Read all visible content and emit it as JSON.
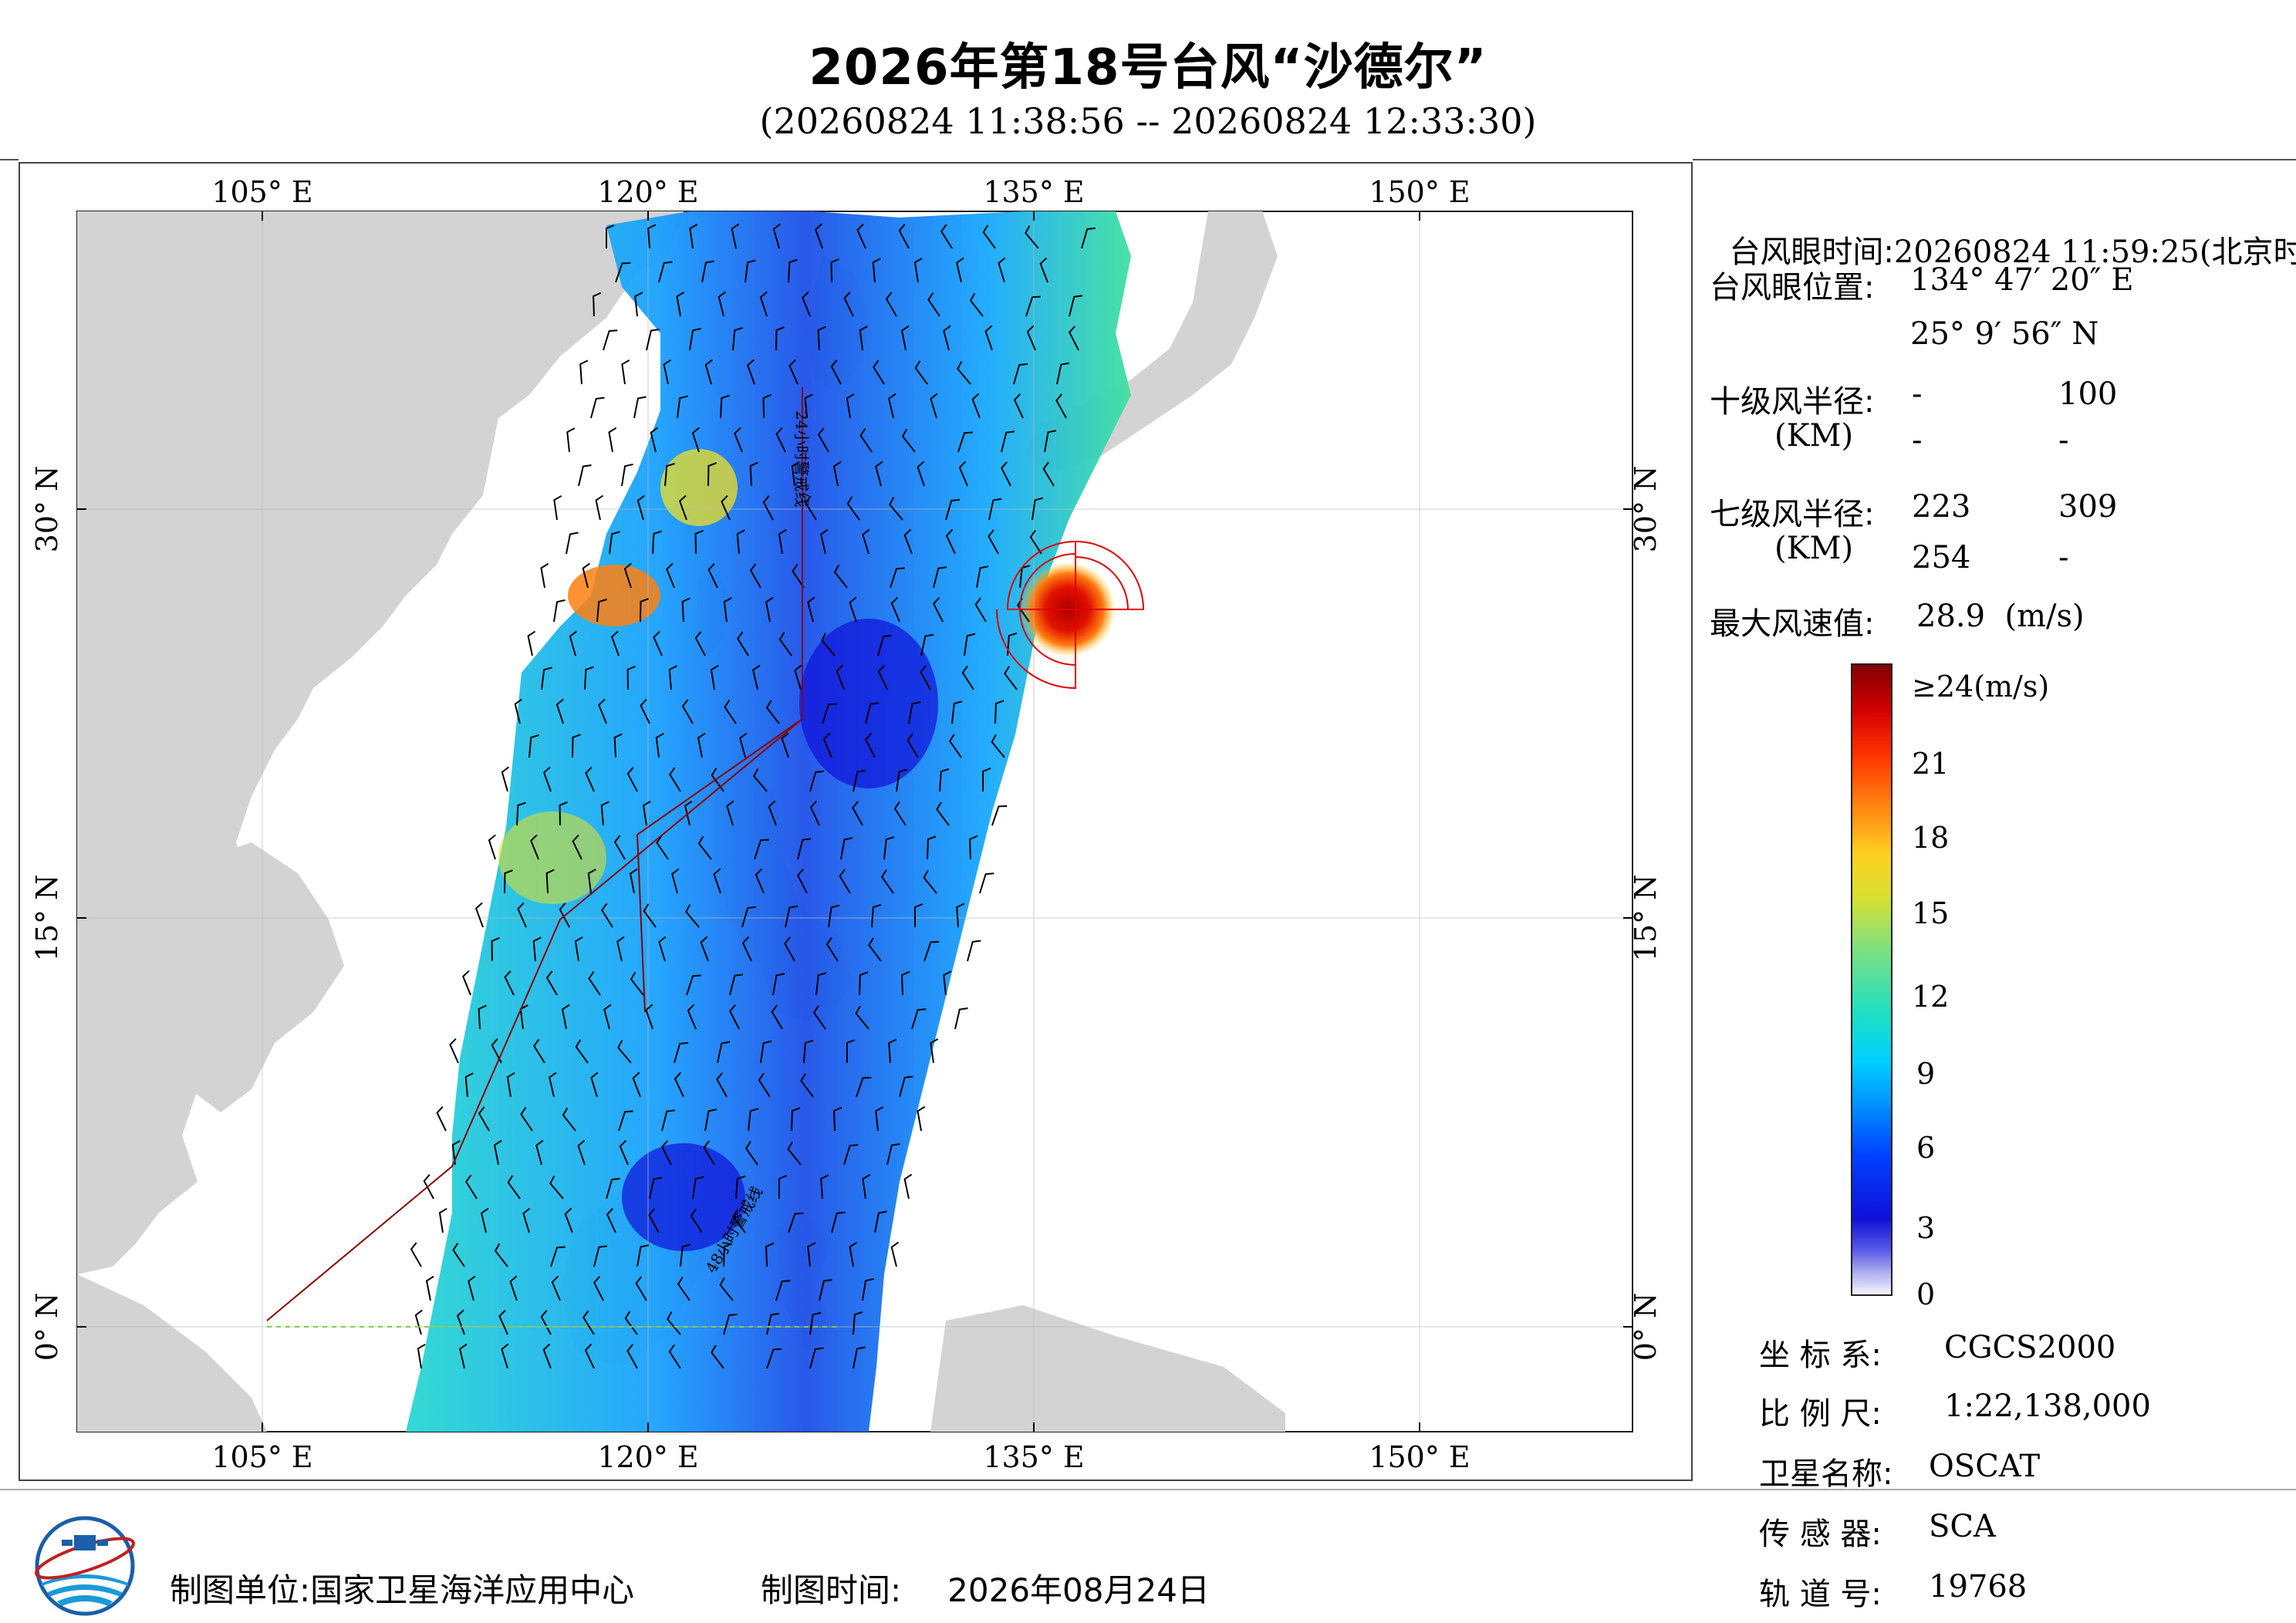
{
  "title": "2026年第18号台风“沙德尔”",
  "subtitle": "(20260824 11:38:56 -- 20260824 12:33:30)",
  "map": {
    "lon_ticks_top": [
      "105° E",
      "120° E",
      "135° E",
      "150° E"
    ],
    "lon_ticks_bottom": [
      "105° E",
      "120° E",
      "135° E",
      "150° E"
    ],
    "lat_ticks_left": [
      "30° N",
      "15° N",
      "0° N"
    ],
    "lat_ticks_right": [
      "30° N",
      "15° N",
      "0° N"
    ],
    "warning_line_labels": [
      "24小时警戒线",
      "48小时警戒线"
    ],
    "colors": {
      "land": "#d3d3d3",
      "sea": "#ffffff",
      "typhoon_marker": "#e00000",
      "warning_line": "#8b0000"
    }
  },
  "info": {
    "eye_time_label": "台风眼时间:",
    "eye_time_value": "20260824 11:59:25(北京时)",
    "eye_pos_label": "台风眼位置:",
    "eye_lon": "134° 47′ 20″ E",
    "eye_lat": "25° 9′ 56″ N",
    "r10_label": "十级风半径:",
    "r10_unit": "(KM)",
    "r10_values": [
      "-",
      "100",
      "-",
      "-"
    ],
    "r7_label": "七级风半径:",
    "r7_unit": "(KM)",
    "r7_values": [
      "223",
      "309",
      "254",
      "-"
    ],
    "max_wind_label": "最大风速值:",
    "max_wind_value": "28.9  (m/s)"
  },
  "colorbar": {
    "labels": [
      "≥24(m/s)",
      "21",
      "18",
      "15",
      "12",
      "9",
      "6",
      "3",
      "0"
    ]
  },
  "meta": {
    "crs_label": "坐 标 系:",
    "crs_value": "CGCS2000",
    "scale_label": "比 例 尺:",
    "scale_value": "1:22,138,000",
    "satellite_label": "卫星名称:",
    "satellite_value": "OSCAT",
    "sensor_label": "传 感 器:",
    "sensor_value": "SCA",
    "orbit_label": "轨 道 号:",
    "orbit_value": "19768"
  },
  "footer": {
    "org_label": "制图单位:",
    "org_value": "国家卫星海洋应用中心",
    "date_label": "制图时间:",
    "date_value": "2026年08月24日"
  }
}
